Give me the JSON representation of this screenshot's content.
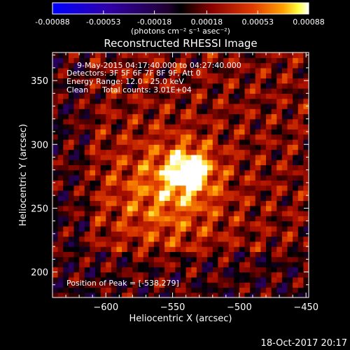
{
  "chart_data": {
    "type": "heatmap",
    "title": "Reconstructed RHESSI Image",
    "xlabel": "Heliocentric X (arcsec)",
    "ylabel": "Heliocentric Y (arcsec)",
    "xlim": [
      -640,
      -448
    ],
    "ylim": [
      180,
      372
    ],
    "x_ticks": [
      -600,
      -550,
      -500,
      -450
    ],
    "y_ticks": [
      200,
      250,
      300,
      350
    ],
    "colorbar": {
      "min": -0.00088,
      "max": 0.00088,
      "ticks": [
        -0.00088,
        -0.00053,
        -0.00018,
        0.00018,
        0.00053,
        0.00088
      ],
      "tick_labels": [
        "-0.00088",
        "-0.00053",
        "-0.00018",
        "0.00018",
        "0.00053",
        "0.00088"
      ],
      "units_label": "(photons cm⁻² s⁻¹ asec⁻²)"
    },
    "colors": {
      "negative_low": "#0000ff",
      "negative_mid": "#4b0082",
      "zero": "#000000",
      "positive_mid": "#c83200",
      "positive_high": "#ff8c00",
      "peak": "#ffff00",
      "max": "#ffffff"
    },
    "source_peak": {
      "x": -538,
      "y": 279
    },
    "annotations": {
      "time_range": "9-May-2015 04:17:40.000 to 04:27:40.000",
      "detectors": "Detectors: 3F 5F 6F 7F 8F 9F, Att 0",
      "energy_range": "Energy Range: 12.0 - 25.0 keV",
      "method": "Clean",
      "total_counts": "Total counts: 3.01E+04",
      "peak_position": "Position of Peak = [-538,279]"
    },
    "footer_timestamp": "18-Oct-2017 20:17"
  }
}
